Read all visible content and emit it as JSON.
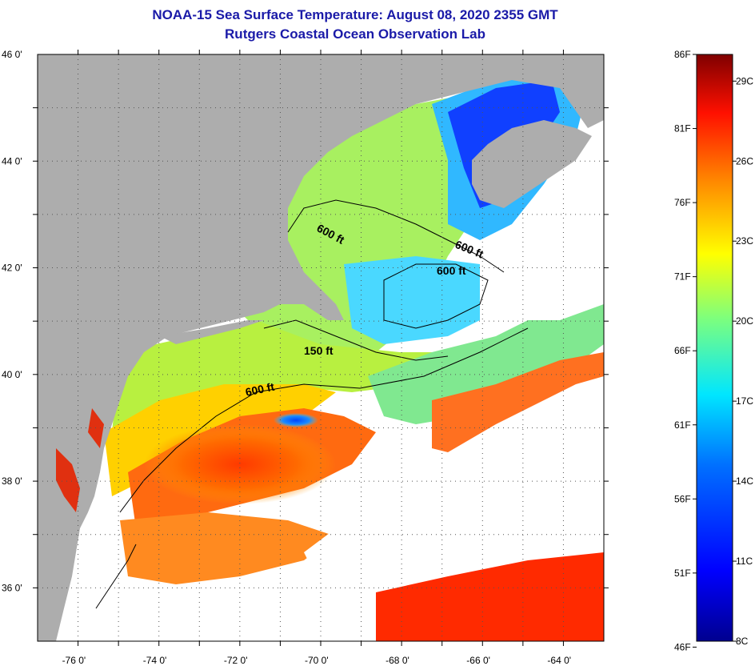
{
  "title": "NOAA-15 Sea Surface Temperature:  August 08, 2020 2355 GMT",
  "subtitle": "Rutgers Coastal Ocean Observation Lab",
  "axes": {
    "lat_labels": [
      {
        "value": 46,
        "label": "46 0'"
      },
      {
        "value": 44,
        "label": "44 0'"
      },
      {
        "value": 42,
        "label": "42 0'"
      },
      {
        "value": 40,
        "label": "40 0'"
      },
      {
        "value": 38,
        "label": "38 0'"
      },
      {
        "value": 36,
        "label": "36 0'"
      }
    ],
    "lon_labels": [
      {
        "value": -76,
        "label": "-76 0'"
      },
      {
        "value": -74,
        "label": "-74 0'"
      },
      {
        "value": -72,
        "label": "-72 0'"
      },
      {
        "value": -70,
        "label": "-70 0'"
      },
      {
        "value": -68,
        "label": "-68 0'"
      },
      {
        "value": -66,
        "label": "-66 0'"
      },
      {
        "value": -64,
        "label": "-64 0'"
      }
    ],
    "lat_range": [
      35,
      46
    ],
    "lon_range": [
      -77,
      -63
    ],
    "grid": "dotted"
  },
  "contours": [
    {
      "label": "600 ft"
    },
    {
      "label": "600 ft"
    },
    {
      "label": "600 ft"
    },
    {
      "label": "150 ft"
    },
    {
      "label": "600 ft"
    }
  ],
  "colorbar": {
    "fahrenheit": [
      "86F",
      "81F",
      "76F",
      "71F",
      "66F",
      "61F",
      "56F",
      "51F",
      "46F"
    ],
    "celsius": [
      "29C",
      "26C",
      "23C",
      "20C",
      "17C",
      "14C",
      "11C",
      "8C"
    ],
    "range_c": [
      8,
      30
    ]
  },
  "colors": {
    "title": "#1a1aa8",
    "land": "#adadad",
    "no_data": "#ffffff"
  }
}
